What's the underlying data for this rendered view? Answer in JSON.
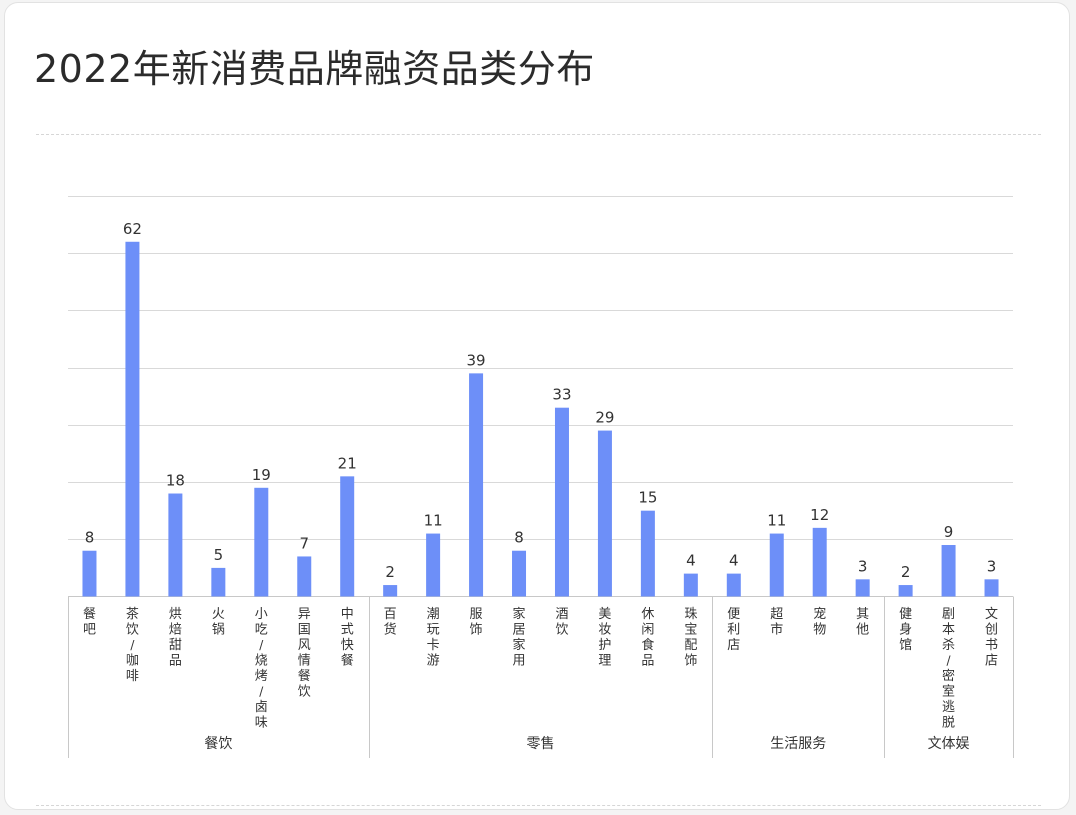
{
  "title": "2022年新消费品牌融资品类分布",
  "colors": {
    "bar": "#6d8ff8",
    "grid": "#d9d9d9",
    "axis": "#c8c8c8",
    "text": "#333333"
  },
  "chart_data": {
    "type": "bar",
    "title": "2022年新消费品牌融资品类分布",
    "xlabel": "",
    "ylabel": "",
    "ylim": [
      0,
      70
    ],
    "grid": true,
    "categories": [
      "餐吧",
      "茶饮/咖啡",
      "烘焙甜品",
      "火锅",
      "小吃/烧烤/卤味",
      "异国风情餐饮",
      "中式快餐",
      "百货",
      "潮玩卡游",
      "服饰",
      "家居家用",
      "酒饮",
      "美妆护理",
      "休闲食品",
      "珠宝配饰",
      "便利店",
      "超市",
      "宠物",
      "其他",
      "健身馆",
      "剧本杀/密室逃脱",
      "文创书店"
    ],
    "values": [
      8,
      62,
      18,
      5,
      19,
      7,
      21,
      2,
      11,
      39,
      8,
      33,
      29,
      15,
      4,
      4,
      11,
      12,
      3,
      2,
      9,
      3
    ],
    "groups": [
      {
        "name": "餐饮",
        "count": 7
      },
      {
        "name": "零售",
        "count": 8
      },
      {
        "name": "生活服务",
        "count": 4
      },
      {
        "name": "文体娱",
        "count": 3
      }
    ]
  }
}
